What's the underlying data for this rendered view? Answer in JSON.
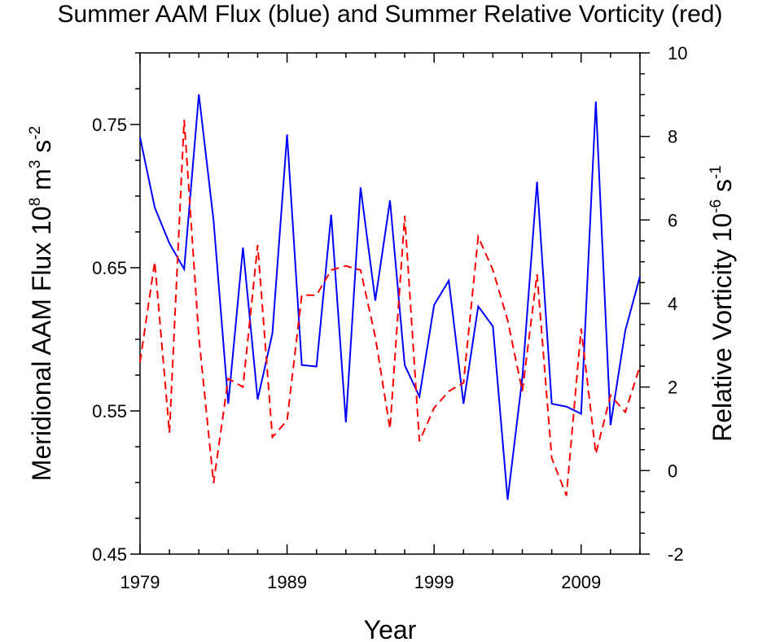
{
  "chart_data": {
    "type": "line",
    "title": "Summer AAM Flux (blue) and Summer Relative Vorticity (red)",
    "xlabel": "Year",
    "ylabel_left": {
      "text": "Meridional AAM Flux 10",
      "exp1": "8",
      "mid": " m",
      "exp2": "3",
      "mid2": " s",
      "exp3": "-2"
    },
    "ylabel_right": {
      "text": "Relative Vorticity 10",
      "exp1": "-6",
      "mid": " s",
      "exp2": "-1"
    },
    "xlim": [
      1979,
      2013
    ],
    "ylim_left": [
      0.45,
      0.8
    ],
    "ylim_right": [
      -2,
      10
    ],
    "x_ticks": [
      1979,
      1989,
      1999,
      2009
    ],
    "y_left_ticks": [
      0.45,
      0.55,
      0.65,
      0.75
    ],
    "y_left_tick_labels": [
      "0.45",
      "0.55",
      "0.65",
      "0.75"
    ],
    "y_right_ticks": [
      -2,
      0,
      2,
      4,
      6,
      8,
      10
    ],
    "y_right_tick_labels": [
      "-2",
      "0",
      "2",
      "4",
      "6",
      "8",
      "10"
    ],
    "x": [
      1979,
      1980,
      1981,
      1982,
      1983,
      1984,
      1985,
      1986,
      1987,
      1988,
      1989,
      1990,
      1991,
      1992,
      1993,
      1994,
      1995,
      1996,
      1997,
      1998,
      1999,
      2000,
      2001,
      2002,
      2003,
      2004,
      2005,
      2006,
      2007,
      2008,
      2009,
      2010,
      2011,
      2012,
      2013
    ],
    "series": [
      {
        "name": "Summer AAM Flux",
        "axis": "left",
        "color": "#0000ff",
        "dash": "solid",
        "values": [
          0.741,
          0.692,
          0.667,
          0.649,
          0.771,
          0.683,
          0.555,
          0.664,
          0.558,
          0.604,
          0.743,
          0.582,
          0.581,
          0.687,
          0.542,
          0.706,
          0.627,
          0.697,
          0.582,
          0.56,
          0.624,
          0.641,
          0.555,
          0.623,
          0.609,
          0.488,
          0.573,
          0.71,
          0.555,
          0.553,
          0.548,
          0.766,
          0.54,
          0.606,
          0.644
        ]
      },
      {
        "name": "Summer Relative Vorticity",
        "axis": "right",
        "color": "#ff0000",
        "dash": "dashed",
        "values": [
          2.6,
          5.0,
          0.9,
          8.4,
          3.2,
          -0.3,
          2.2,
          2.0,
          5.4,
          0.8,
          1.2,
          4.2,
          4.2,
          4.8,
          4.9,
          4.8,
          3.2,
          1.0,
          6.1,
          0.7,
          1.5,
          1.9,
          2.1,
          5.6,
          4.8,
          3.6,
          1.9,
          4.7,
          0.3,
          -0.6,
          3.4,
          0.4,
          1.8,
          1.4,
          2.5
        ]
      }
    ],
    "grid": false,
    "legend": "none"
  }
}
